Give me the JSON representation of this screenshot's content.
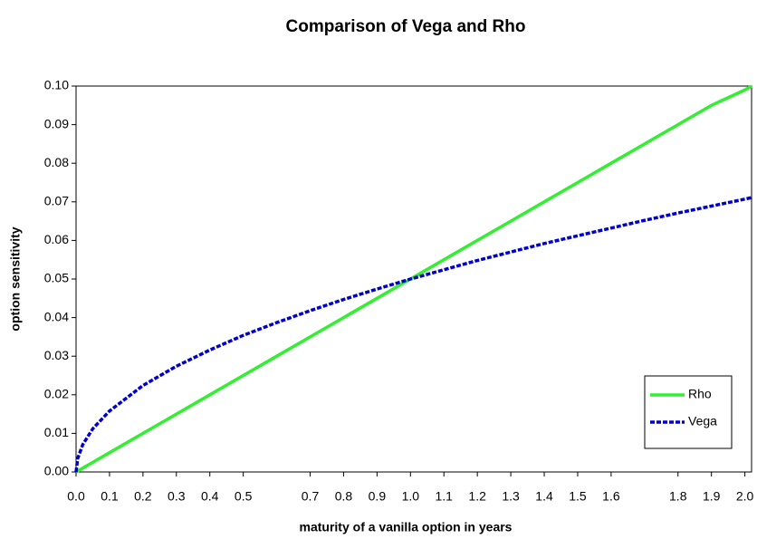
{
  "chart_data": {
    "type": "line",
    "title": "Comparison of Vega and Rho",
    "x_label": "maturity of a vanilla option in years",
    "y_label": "option sensitivity",
    "x": [
      0,
      0.005,
      0.02,
      0.05,
      0.1,
      0.2,
      0.3,
      0.4,
      0.5,
      0.6,
      0.7,
      0.8,
      0.9,
      1.0,
      1.1,
      1.2,
      1.3,
      1.4,
      1.5,
      1.6,
      1.7,
      1.8,
      1.9,
      2.0,
      2.02
    ],
    "series": [
      {
        "name": "Rho",
        "color": "#33ee33",
        "dashed": false,
        "values": [
          0,
          0.00025,
          0.001,
          0.0025,
          0.005,
          0.01,
          0.015,
          0.02,
          0.025,
          0.03,
          0.035,
          0.04,
          0.045,
          0.05,
          0.055,
          0.06,
          0.065,
          0.07,
          0.075,
          0.08,
          0.085,
          0.09,
          0.095,
          0.099,
          0.1
        ]
      },
      {
        "name": "Vega",
        "color": "#0000cc",
        "dashed": true,
        "values": [
          0,
          0.0035,
          0.0071,
          0.0112,
          0.0158,
          0.0224,
          0.0274,
          0.0316,
          0.0354,
          0.0387,
          0.0418,
          0.0447,
          0.0474,
          0.05,
          0.0524,
          0.0548,
          0.057,
          0.0592,
          0.0612,
          0.0632,
          0.0652,
          0.0671,
          0.0689,
          0.0707,
          0.0711
        ]
      }
    ],
    "xlim": [
      0,
      2.02
    ],
    "ylim": [
      0,
      0.1
    ],
    "xticks": [
      {
        "value": 0,
        "label": "0.0"
      },
      0.1,
      0.2,
      0.3,
      0.4,
      0.5,
      0.7,
      0.8,
      0.9,
      {
        "value": 1,
        "label": "1.0"
      },
      1.1,
      1.2,
      1.3,
      1.4,
      1.5,
      1.6,
      1.8,
      1.9,
      {
        "value": 2,
        "label": "2.0"
      }
    ],
    "yticks": [
      {
        "value": 0,
        "label": "0.00"
      },
      {
        "value": 0.01,
        "label": "0.01"
      },
      {
        "value": 0.02,
        "label": "0.02"
      },
      {
        "value": 0.03,
        "label": "0.03"
      },
      {
        "value": 0.04,
        "label": "0.04"
      },
      {
        "value": 0.05,
        "label": "0.05"
      },
      {
        "value": 0.06,
        "label": "0.06"
      },
      {
        "value": 0.07,
        "label": "0.07"
      },
      {
        "value": 0.08,
        "label": "0.08"
      },
      {
        "value": 0.09,
        "label": "0.09"
      },
      {
        "value": 0.1,
        "label": "0.10"
      }
    ],
    "grid": false,
    "legend": "lower right"
  }
}
